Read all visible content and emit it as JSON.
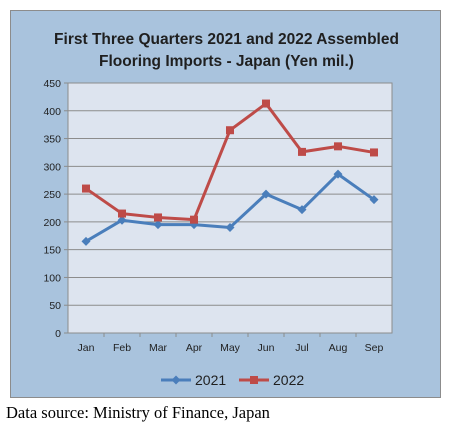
{
  "chart_data": {
    "type": "line",
    "title_line1": "First Three Quarters 2021 and 2022 Assembled",
    "title_line2": "Flooring Imports - Japan (Yen mil.)",
    "categories": [
      "Jan",
      "Feb",
      "Mar",
      "Apr",
      "May",
      "Jun",
      "Jul",
      "Aug",
      "Sep"
    ],
    "ylim": [
      0,
      450
    ],
    "yticks": [
      "0",
      "50",
      "100",
      "150",
      "200",
      "250",
      "300",
      "350",
      "400",
      "450"
    ],
    "grid": true,
    "legend_position": "bottom",
    "series": [
      {
        "name": "2021",
        "color": "#4a7ebb",
        "values": [
          165,
          203,
          195,
          195,
          190,
          250,
          222,
          286,
          240
        ]
      },
      {
        "name": "2022",
        "color": "#be4b48",
        "values": [
          260,
          215,
          208,
          204,
          365,
          413,
          326,
          336,
          325
        ]
      }
    ]
  },
  "source_note": "Data source: Ministry of Finance, Japan"
}
